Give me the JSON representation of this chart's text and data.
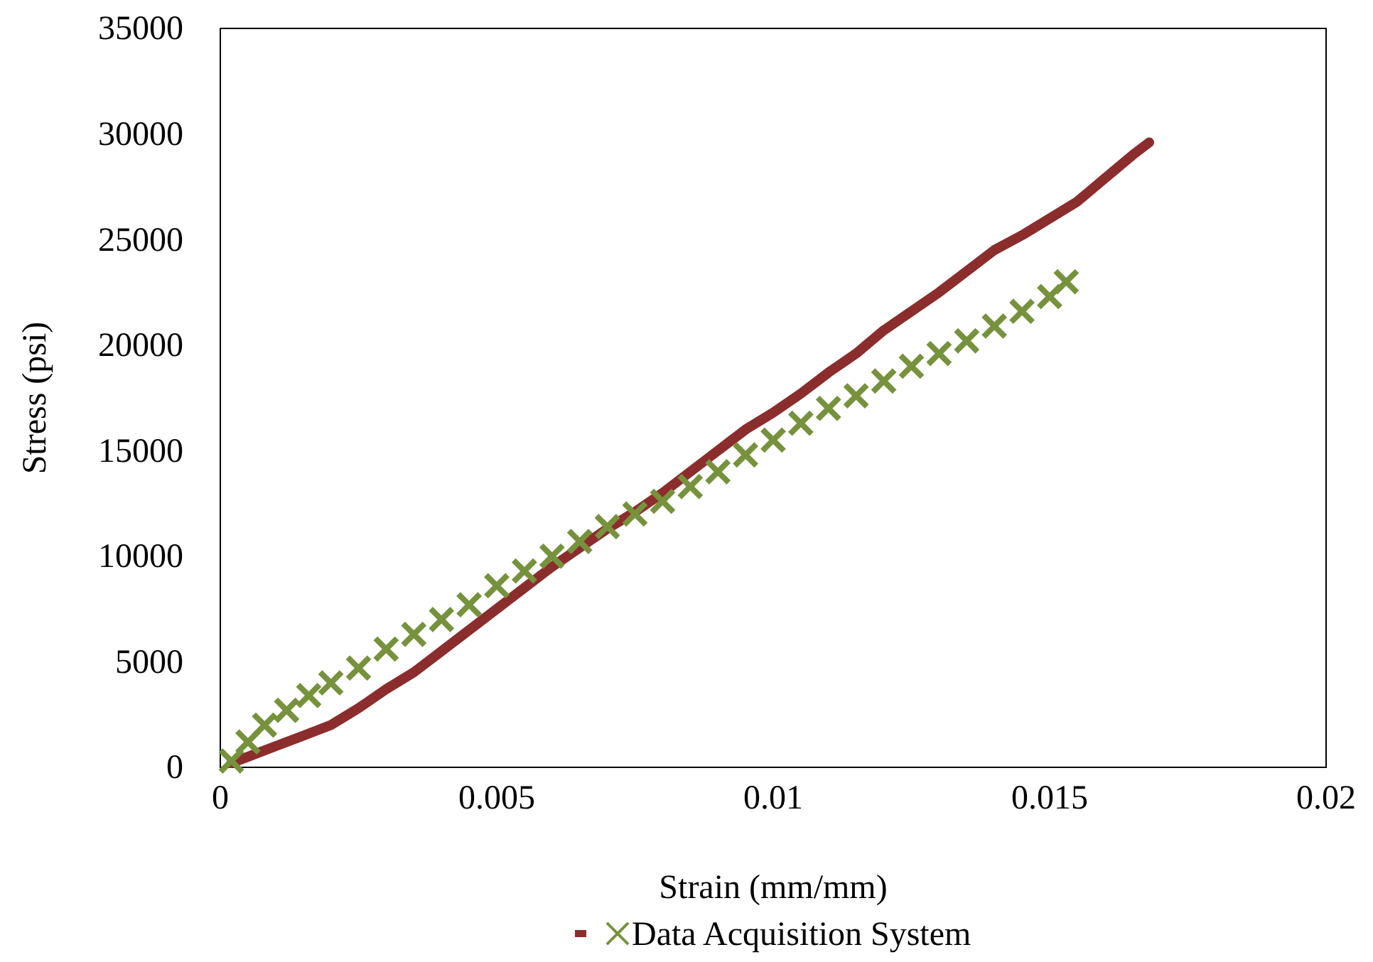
{
  "chart_data": {
    "type": "line",
    "xlabel": "Strain (mm/mm)",
    "ylabel": "Stress (psi)",
    "xlim": [
      0,
      0.02
    ],
    "xticks": [
      0,
      0.005,
      0.01,
      0.015,
      0.02
    ],
    "ylim": [
      0,
      35000
    ],
    "yticks": [
      0,
      5000,
      10000,
      15000,
      20000,
      25000,
      30000,
      35000
    ],
    "grid": false,
    "legend": "bottom",
    "series": [
      {
        "marker": "none",
        "color": "#8c2d2d",
        "x": [
          0.0002,
          0.0005,
          0.001,
          0.0015,
          0.002,
          0.0025,
          0.003,
          0.0035,
          0.004,
          0.0045,
          0.005,
          0.0055,
          0.006,
          0.0065,
          0.007,
          0.0075,
          0.008,
          0.0085,
          0.009,
          0.0095,
          0.01,
          0.0105,
          0.011,
          0.0115,
          0.012,
          0.0125,
          0.013,
          0.0135,
          0.014,
          0.0145,
          0.015,
          0.0155,
          0.016,
          0.0165,
          0.0168
        ],
        "values": [
          200,
          500,
          1000,
          1500,
          2000,
          2800,
          3700,
          4500,
          5500,
          6500,
          7500,
          8500,
          9500,
          10400,
          11300,
          12100,
          13000,
          14000,
          15000,
          16000,
          16800,
          17700,
          18700,
          19600,
          20700,
          21600,
          22500,
          23500,
          24500,
          25200,
          26000,
          26800,
          27900,
          29000,
          29600
        ]
      },
      {
        "type": "scatter",
        "marker": "cross",
        "name": "Data Acquisition System",
        "color": "#76923c",
        "x": [
          0.0002,
          0.0005,
          0.0008,
          0.0012,
          0.0016,
          0.002,
          0.0025,
          0.003,
          0.0035,
          0.004,
          0.0045,
          0.005,
          0.0055,
          0.006,
          0.0065,
          0.007,
          0.0075,
          0.008,
          0.0085,
          0.009,
          0.0095,
          0.01,
          0.0105,
          0.011,
          0.0115,
          0.012,
          0.0125,
          0.013,
          0.0135,
          0.014,
          0.0145,
          0.015,
          0.0153
        ],
        "values": [
          300,
          1200,
          2000,
          2700,
          3400,
          4000,
          4700,
          5600,
          6300,
          7000,
          7700,
          8600,
          9300,
          10000,
          10700,
          11400,
          12000,
          12600,
          13300,
          14000,
          14800,
          15500,
          16300,
          17000,
          17600,
          18300,
          19000,
          19600,
          20200,
          20900,
          21600,
          22300,
          23000
        ]
      }
    ]
  }
}
